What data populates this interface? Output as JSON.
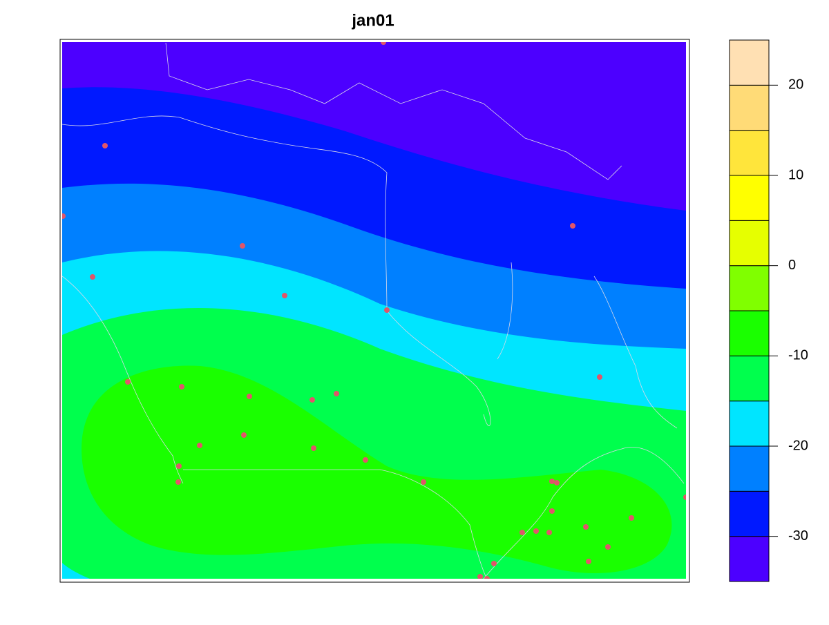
{
  "chart_data": {
    "type": "filled-contour",
    "title": "jan01",
    "levels": [
      -35,
      -30,
      -25,
      -20,
      -15,
      -10,
      -5,
      0,
      5,
      10,
      15,
      20,
      25
    ],
    "colors": [
      "#4C00FF",
      "#0019FF",
      "#0080FF",
      "#00E5FF",
      "#00FF4D",
      "#1AFF00",
      "#80FF00",
      "#E6FF00",
      "#FFFF00",
      "#FFE53B",
      "#FFDB77",
      "#FFE0B3"
    ],
    "zticks": [
      -30,
      -20,
      -10,
      0,
      10,
      20
    ]
  }
}
